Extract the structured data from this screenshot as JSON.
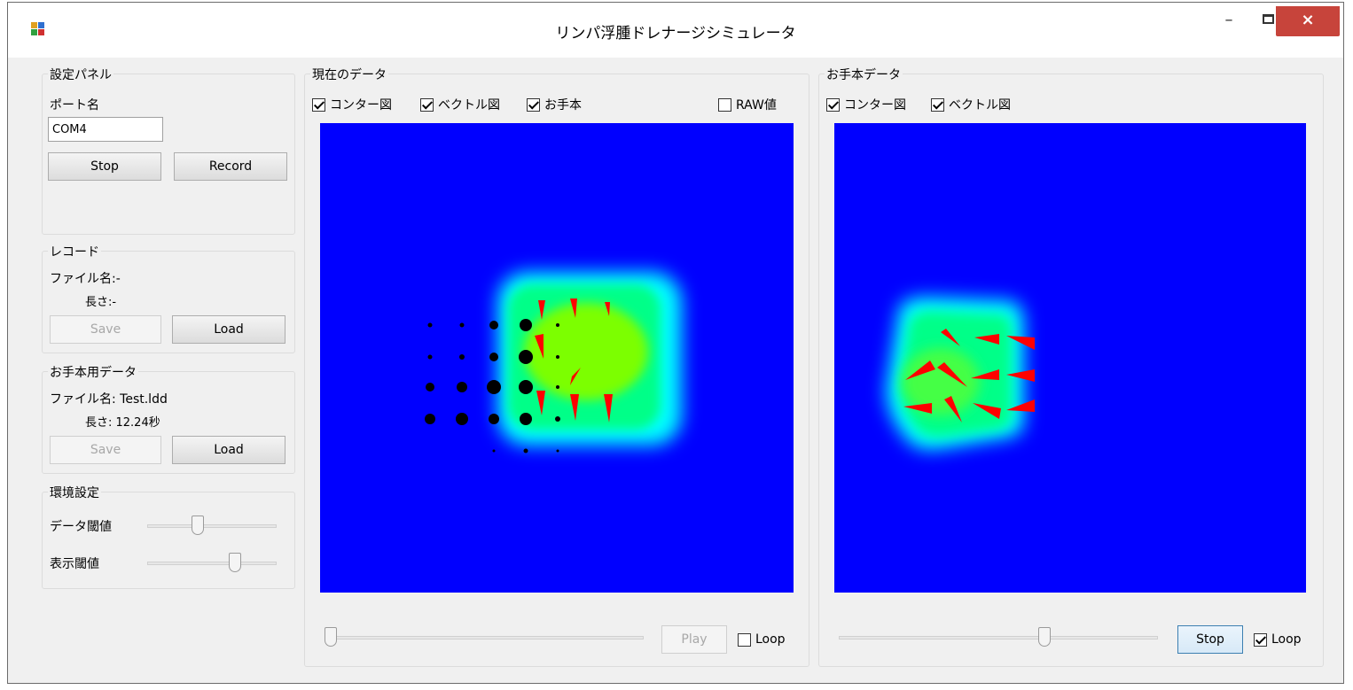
{
  "window": {
    "title": "リンパ浮腫ドレナージシミュレータ",
    "minimize": "–",
    "close": "×"
  },
  "settings_panel": {
    "title": "設定パネル",
    "port_label": "ポート名",
    "port_value": "COM4",
    "stop_button": "Stop",
    "record_button": "Record"
  },
  "record_panel": {
    "title": "レコード",
    "file_label": "ファイル名:-",
    "length_label": "長さ:-",
    "save_button": "Save",
    "load_button": "Load"
  },
  "sample_panel": {
    "title": "お手本用データ",
    "file_label": "ファイル名: Test.ldd",
    "length_label": "長さ: 12.24秒",
    "save_button": "Save",
    "load_button": "Load"
  },
  "env_panel": {
    "title": "環境設定",
    "data_threshold_label": "データ閾値",
    "data_threshold_level": 0.38,
    "display_threshold_label": "表示閾値",
    "display_threshold_level": 0.7
  },
  "current_data": {
    "title": "現在のデータ",
    "contour_check": "コンター図",
    "contour_checked": true,
    "vector_check": "ベクトル図",
    "vector_checked": true,
    "sample_check": "お手本",
    "sample_checked": true,
    "raw_check": "RAW値",
    "raw_checked": false,
    "play_button": "Play",
    "loop_check": "Loop",
    "loop_checked": false,
    "playback_level": 0.0
  },
  "sample_data": {
    "title": "お手本データ",
    "contour_check": "コンター図",
    "contour_checked": true,
    "vector_check": "ベクトル図",
    "vector_checked": true,
    "stop_button": "Stop",
    "loop_check": "Loop",
    "loop_checked": true,
    "playback_level": 0.65
  },
  "colors": {
    "background": "#0000ff",
    "hot": "#7cff00",
    "warm": "#00ff88",
    "edge": "#00ffff",
    "vector": "#ff0000",
    "dots": "#000000"
  }
}
